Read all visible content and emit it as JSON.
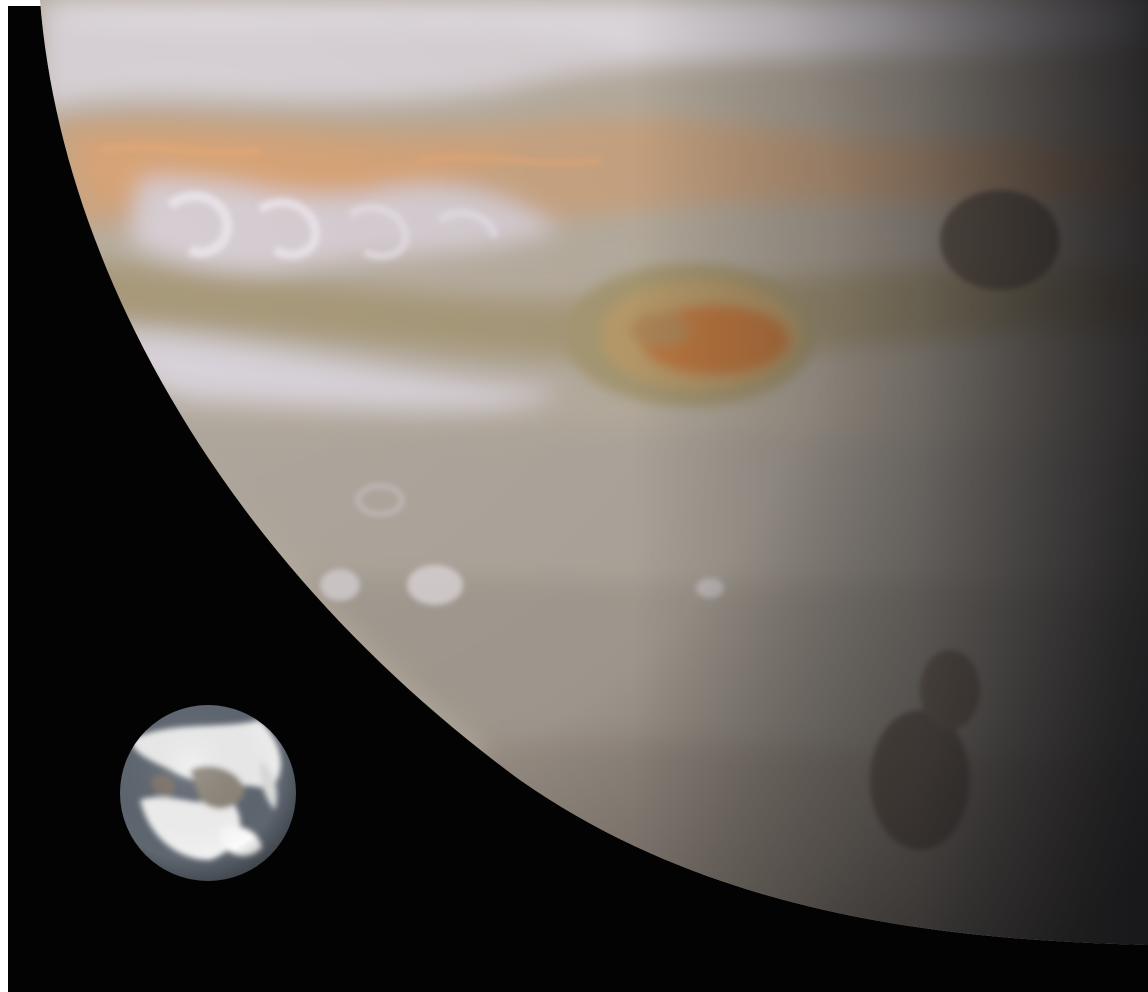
{
  "scene": {
    "subject": "jupiter-and-earth-size-comparison",
    "colors": {
      "space": "#030303",
      "frame": "#ffffff",
      "jupiter_base": "#b8aea0",
      "jupiter_light_band": "#ddd6d8",
      "jupiter_tan_band": "#c9a583",
      "jupiter_orange": "#d8a070",
      "jupiter_dark_band": "#8a7e70",
      "great_red_spot": "#b98a58",
      "great_red_spot_core": "#c07840",
      "jupiter_shadow": "#2a2a2e",
      "earth_ocean": "#5a6470",
      "earth_cloud": "#f4f4f4",
      "earth_land": "#8a8278"
    }
  }
}
